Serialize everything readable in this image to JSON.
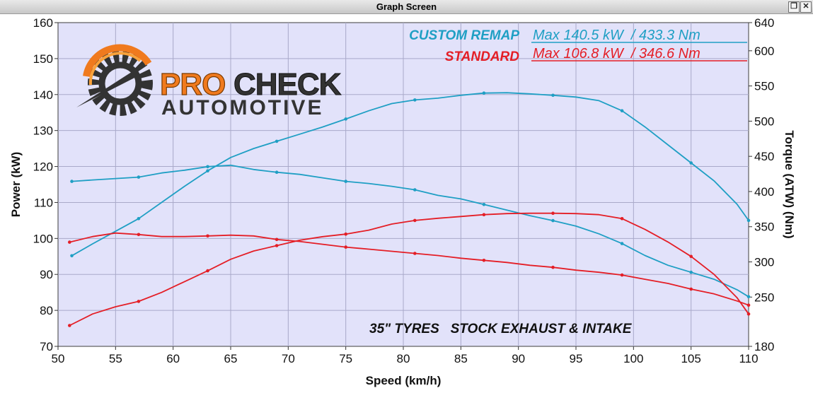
{
  "window": {
    "title": "Graph Screen",
    "restore_icon": "restore-icon",
    "close_icon": "close-icon",
    "close_symbol": "✕",
    "restore_symbol": "❐"
  },
  "logo": {
    "brand_top_a": "PRO",
    "brand_top_b": "CHECK",
    "brand_bottom": "AUTOMOTIVE",
    "icon": "gear-speedometer-icon"
  },
  "legend": {
    "custom_label": "CUSTOM REMAP",
    "custom_max": "Max 140.5 kW  / 433.3 Nm",
    "standard_label": "STANDARD",
    "standard_max": "Max 106.8 kW  / 346.6 Nm"
  },
  "annotation": "35\" TYRES   STOCK EXHAUST & INTAKE",
  "colors": {
    "custom": "#1f9fc4",
    "standard": "#e41e26",
    "plot_bg": "#e2e2fa",
    "grid": "#a9a9c9",
    "logo_orange": "#f07a1e",
    "logo_dark": "#333333"
  },
  "chart_data": {
    "type": "line",
    "xlabel": "Speed (km/h)",
    "ylabel": "Power (kW)",
    "y2label": "Torque (ATW) (Nm)",
    "xlim": [
      50,
      110
    ],
    "ylim": [
      70,
      160
    ],
    "y2lim": [
      180,
      640
    ],
    "xticks": [
      50,
      55,
      60,
      65,
      70,
      75,
      80,
      85,
      90,
      95,
      100,
      105,
      110
    ],
    "yticks": [
      70,
      80,
      90,
      100,
      110,
      120,
      130,
      140,
      150,
      160
    ],
    "y2ticks": [
      180,
      250,
      300,
      350,
      400,
      450,
      500,
      550,
      600,
      640
    ],
    "grid": true,
    "series": [
      {
        "name": "CUSTOM REMAP",
        "quantity": "Power",
        "axis": "left",
        "color": "#1f9fc4",
        "points": [
          [
            51.2,
            95.2
          ],
          [
            53,
            98.5
          ],
          [
            55,
            102
          ],
          [
            57,
            105.5
          ],
          [
            59,
            110
          ],
          [
            61,
            114.5
          ],
          [
            63,
            118.8
          ],
          [
            65,
            122.5
          ],
          [
            67,
            125
          ],
          [
            69,
            127
          ],
          [
            71,
            129
          ],
          [
            73,
            131
          ],
          [
            75,
            133.2
          ],
          [
            77,
            135.5
          ],
          [
            79,
            137.5
          ],
          [
            81,
            138.5
          ],
          [
            83,
            139
          ],
          [
            85,
            139.8
          ],
          [
            87,
            140.4
          ],
          [
            89,
            140.5
          ],
          [
            91,
            140.2
          ],
          [
            93,
            139.8
          ],
          [
            95,
            139.3
          ],
          [
            97,
            138.3
          ],
          [
            99,
            135.5
          ],
          [
            101,
            131
          ],
          [
            103,
            126
          ],
          [
            105,
            121
          ],
          [
            107,
            116
          ],
          [
            109,
            109.5
          ],
          [
            110,
            105
          ]
        ]
      },
      {
        "name": "CUSTOM REMAP",
        "quantity": "Torque",
        "axis": "right",
        "color": "#1f9fc4",
        "points": [
          [
            51.2,
            414.4
          ],
          [
            53,
            416.4
          ],
          [
            55,
            418.4
          ],
          [
            57,
            420.4
          ],
          [
            59,
            426.4
          ],
          [
            61,
            430.3
          ],
          [
            63,
            435.3
          ],
          [
            65,
            437.3
          ],
          [
            67,
            431.3
          ],
          [
            69,
            427.4
          ],
          [
            71,
            424.4
          ],
          [
            73,
            419.4
          ],
          [
            75,
            414.4
          ],
          [
            77,
            411.4
          ],
          [
            79,
            407.4
          ],
          [
            81,
            402.5
          ],
          [
            83,
            394.5
          ],
          [
            85,
            389.5
          ],
          [
            87,
            381.6
          ],
          [
            89,
            373.6
          ],
          [
            91,
            365.7
          ],
          [
            93,
            358.7
          ],
          [
            95,
            350.8
          ],
          [
            97,
            339.9
          ],
          [
            99,
            326.0
          ],
          [
            101,
            309.1
          ],
          [
            103,
            295.2
          ],
          [
            105,
            285.3
          ],
          [
            107,
            275.3
          ],
          [
            109,
            260.4
          ],
          [
            110,
            250.5
          ]
        ]
      },
      {
        "name": "STANDARD",
        "quantity": "Power",
        "axis": "left",
        "color": "#e41e26",
        "points": [
          [
            51,
            75.8
          ],
          [
            53,
            79
          ],
          [
            55,
            81
          ],
          [
            57,
            82.5
          ],
          [
            59,
            85
          ],
          [
            61,
            88
          ],
          [
            63,
            91
          ],
          [
            65,
            94.2
          ],
          [
            67,
            96.5
          ],
          [
            69,
            98
          ],
          [
            71,
            99.5
          ],
          [
            73,
            100.5
          ],
          [
            75,
            101.2
          ],
          [
            77,
            102.3
          ],
          [
            79,
            104
          ],
          [
            81,
            105
          ],
          [
            83,
            105.6
          ],
          [
            85,
            106.1
          ],
          [
            87,
            106.6
          ],
          [
            89,
            106.9
          ],
          [
            91,
            107
          ],
          [
            93,
            107
          ],
          [
            95,
            106.9
          ],
          [
            97,
            106.6
          ],
          [
            99,
            105.5
          ],
          [
            101,
            102.5
          ],
          [
            103,
            99
          ],
          [
            105,
            95
          ],
          [
            107,
            90
          ],
          [
            109,
            83.5
          ],
          [
            110,
            79
          ]
        ]
      },
      {
        "name": "STANDARD",
        "quantity": "Torque",
        "axis": "right",
        "color": "#e41e26",
        "points": [
          [
            51,
            328.0
          ],
          [
            53,
            336.0
          ],
          [
            55,
            341.0
          ],
          [
            57,
            338.9
          ],
          [
            59,
            336.0
          ],
          [
            61,
            336.0
          ],
          [
            63,
            336.9
          ],
          [
            65,
            338.0
          ],
          [
            67,
            336.9
          ],
          [
            69,
            331.9
          ],
          [
            71,
            329.0
          ],
          [
            73,
            325.0
          ],
          [
            75,
            321.0
          ],
          [
            77,
            318.1
          ],
          [
            79,
            315.1
          ],
          [
            81,
            312.1
          ],
          [
            83,
            309.1
          ],
          [
            85,
            305.2
          ],
          [
            87,
            302.2
          ],
          [
            89,
            299.2
          ],
          [
            91,
            295.2
          ],
          [
            93,
            292.3
          ],
          [
            95,
            288.3
          ],
          [
            97,
            285.3
          ],
          [
            99,
            281.3
          ],
          [
            101,
            275.3
          ],
          [
            103,
            269.4
          ],
          [
            105,
            261.4
          ],
          [
            107,
            254.5
          ],
          [
            109,
            244.5
          ],
          [
            110,
            238.6
          ]
        ]
      }
    ]
  }
}
